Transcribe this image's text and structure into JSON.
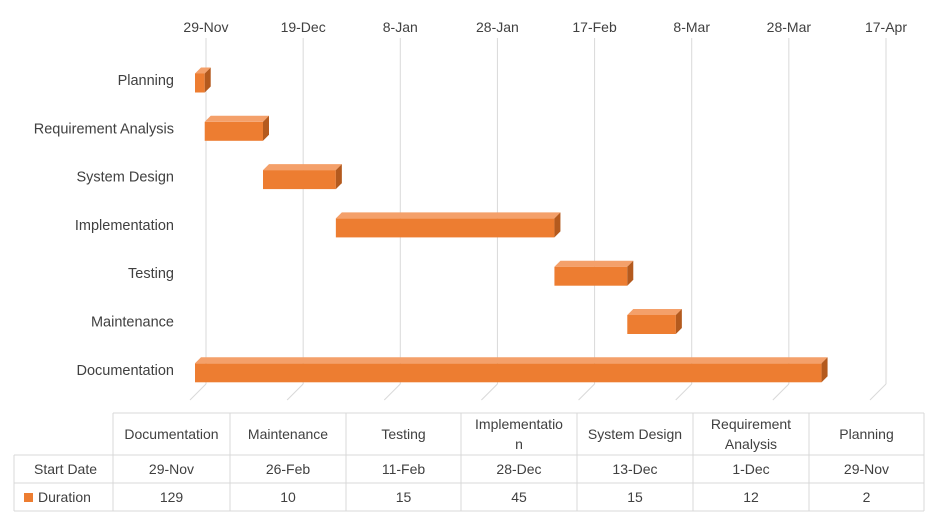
{
  "colors": {
    "bar_front": "#ED7D31",
    "bar_top": "#F4A06A",
    "bar_side": "#B45A1E",
    "gridline": "#D9D9D9",
    "table_border": "#D9D9D9"
  },
  "chart_data": {
    "type": "bar",
    "orientation": "horizontal",
    "style": "3d-stacked-gantt",
    "x_axis_position": "top",
    "x_ticks": [
      "29-Nov",
      "19-Dec",
      "8-Jan",
      "28-Jan",
      "17-Feb",
      "8-Mar",
      "28-Mar",
      "17-Apr"
    ],
    "x_tick_days": [
      0,
      20,
      40,
      60,
      80,
      100,
      120,
      140
    ],
    "xlim_days": [
      0,
      140
    ],
    "categories": [
      "Documentation",
      "Maintenance",
      "Testing",
      "Implementation",
      "System Design",
      "Requirement Analysis",
      "Planning"
    ],
    "category_labels": [
      "Documentation",
      "Maintenance",
      "Testing",
      "Implementation",
      "System Design",
      "Requirement Analysis",
      "Planning"
    ],
    "table_header_lines": [
      [
        "Documentation"
      ],
      [
        "Maintenance"
      ],
      [
        "Testing"
      ],
      [
        "Implementatio",
        "n"
      ],
      [
        "System Design"
      ],
      [
        "Requirement",
        "Analysis"
      ],
      [
        "Planning"
      ]
    ],
    "series": [
      {
        "name": "Start Date",
        "values": [
          "29-Nov",
          "26-Feb",
          "11-Feb",
          "28-Dec",
          "13-Dec",
          "1-Dec",
          "29-Nov"
        ],
        "offset_days": [
          0,
          89,
          74,
          29,
          14,
          2,
          0
        ],
        "visible": false
      },
      {
        "name": "Duration",
        "values": [
          129,
          10,
          15,
          45,
          15,
          12,
          2
        ],
        "visible": true
      }
    ],
    "grid": true,
    "legend": "in-data-table",
    "data_table": true
  }
}
